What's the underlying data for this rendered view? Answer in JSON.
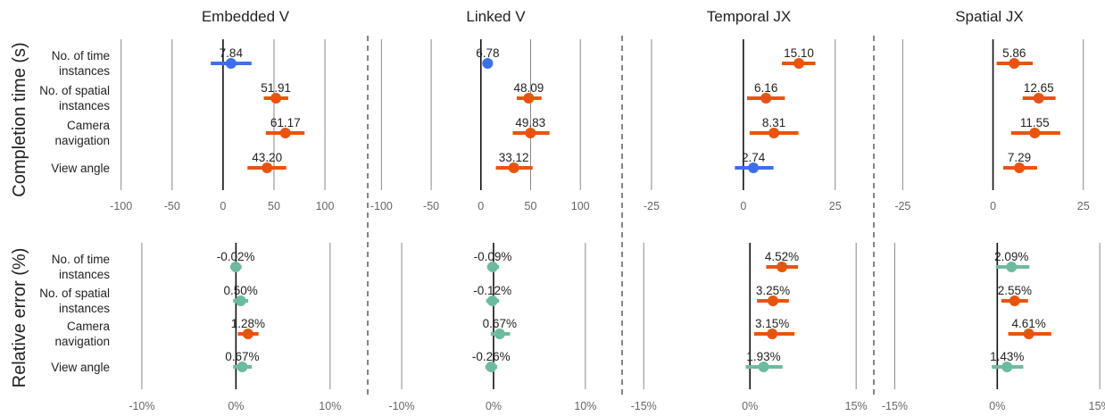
{
  "colors": {
    "significant": "#e8540e",
    "completion_other": "#3d6fe8",
    "error_other": "#6dbb9f",
    "grid": "#888888",
    "zero": "#111111",
    "text": "#222222",
    "tick": "#666666"
  },
  "row_titles": [
    "Completion time (s)",
    "Relative error (%)"
  ],
  "panel_titles": [
    "Embedded V",
    "Linked V",
    "Temporal JX",
    "Spatial JX"
  ],
  "categories": [
    [
      "No. of time",
      "instances"
    ],
    [
      "No. of spatial",
      "instances"
    ],
    [
      "Camera",
      "navigation"
    ],
    [
      "View angle"
    ]
  ],
  "chart_data": [
    {
      "type": "scatter",
      "row": 0,
      "col": 0,
      "title": "Embedded V",
      "xlim": [
        -112,
        142
      ],
      "ticks": [
        -100,
        -50,
        0,
        50,
        100
      ],
      "tick_labels": [
        "-100",
        "-50",
        "0",
        "50",
        "100"
      ],
      "grid": true,
      "points": [
        {
          "value": 7.84,
          "low": -12,
          "high": 28,
          "label": "7.84",
          "color": "completion_other"
        },
        {
          "value": 51.91,
          "low": 40,
          "high": 64,
          "label": "51.91",
          "color": "significant"
        },
        {
          "value": 61.17,
          "low": 42,
          "high": 80,
          "label": "61.17",
          "color": "significant"
        },
        {
          "value": 43.2,
          "low": 24,
          "high": 62,
          "label": "43.20",
          "color": "significant"
        }
      ]
    },
    {
      "type": "scatter",
      "row": 0,
      "col": 1,
      "title": "Linked V",
      "xlim": [
        -112,
        142
      ],
      "ticks": [
        -100,
        -50,
        0,
        50,
        100
      ],
      "tick_labels": [
        "-100",
        "-50",
        "0",
        "50",
        "100"
      ],
      "grid": true,
      "points": [
        {
          "value": 6.78,
          "low": 6.78,
          "high": 6.78,
          "label": "6.78",
          "color": "completion_other"
        },
        {
          "value": 48.09,
          "low": 36,
          "high": 61,
          "label": "48.09",
          "color": "significant"
        },
        {
          "value": 49.83,
          "low": 32,
          "high": 69,
          "label": "49.83",
          "color": "significant"
        },
        {
          "value": 33.12,
          "low": 15,
          "high": 52,
          "label": "33.12",
          "color": "significant"
        }
      ]
    },
    {
      "type": "scatter",
      "row": 0,
      "col": 2,
      "title": "Temporal JX",
      "xlim": [
        -32.5,
        35.5
      ],
      "ticks": [
        -25,
        0,
        25
      ],
      "tick_labels": [
        "-25",
        "0",
        "25"
      ],
      "grid": true,
      "points": [
        {
          "value": 15.1,
          "low": 10.5,
          "high": 19.6,
          "label": "15.10",
          "color": "significant"
        },
        {
          "value": 6.16,
          "low": 1.0,
          "high": 11.3,
          "label": "6.16",
          "color": "significant"
        },
        {
          "value": 8.31,
          "low": 1.7,
          "high": 15.0,
          "label": "8.31",
          "color": "significant"
        },
        {
          "value": 2.74,
          "low": -2.3,
          "high": 8.2,
          "label": "2.74",
          "color": "completion_other"
        }
      ]
    },
    {
      "type": "scatter",
      "row": 0,
      "col": 3,
      "title": "Spatial JX",
      "xlim": [
        -32.5,
        30.5
      ],
      "ticks": [
        -25,
        0,
        25
      ],
      "tick_labels": [
        "-25",
        "0",
        "25"
      ],
      "grid": true,
      "points": [
        {
          "value": 5.86,
          "low": 1.0,
          "high": 11.0,
          "label": "5.86",
          "color": "significant"
        },
        {
          "value": 12.65,
          "low": 8.2,
          "high": 17.3,
          "label": "12.65",
          "color": "significant"
        },
        {
          "value": 11.55,
          "low": 5.0,
          "high": 18.6,
          "label": "11.55",
          "color": "significant"
        },
        {
          "value": 7.29,
          "low": 2.8,
          "high": 12.2,
          "label": "7.29",
          "color": "significant"
        }
      ]
    },
    {
      "type": "scatter",
      "row": 1,
      "col": 0,
      "title": "",
      "xlim": [
        -13.5,
        14.0
      ],
      "ticks": [
        -10,
        0,
        10
      ],
      "tick_labels": [
        "-10%",
        "0%",
        "10%"
      ],
      "grid": true,
      "points": [
        {
          "value": -0.02,
          "low": -0.6,
          "high": 0.6,
          "label": "-0.02%",
          "color": "error_other"
        },
        {
          "value": 0.5,
          "low": -0.3,
          "high": 1.3,
          "label": "0.50%",
          "color": "error_other"
        },
        {
          "value": 1.28,
          "low": 0.2,
          "high": 2.4,
          "label": "1.28%",
          "color": "significant"
        },
        {
          "value": 0.67,
          "low": -0.3,
          "high": 1.7,
          "label": "0.67%",
          "color": "error_other"
        }
      ]
    },
    {
      "type": "scatter",
      "row": 1,
      "col": 1,
      "title": "",
      "xlim": [
        -13.5,
        14.0
      ],
      "ticks": [
        -10,
        0,
        10
      ],
      "tick_labels": [
        "-10%",
        "0%",
        "10%"
      ],
      "grid": true,
      "points": [
        {
          "value": -0.09,
          "low": -0.7,
          "high": 0.6,
          "label": "-0.09%",
          "color": "error_other"
        },
        {
          "value": -0.12,
          "low": -0.8,
          "high": 0.6,
          "label": "-0.12%",
          "color": "error_other"
        },
        {
          "value": 0.67,
          "low": -0.3,
          "high": 1.8,
          "label": "0.67%",
          "color": "error_other"
        },
        {
          "value": -0.26,
          "low": -0.9,
          "high": 0.4,
          "label": "-0.26%",
          "color": "error_other"
        }
      ]
    },
    {
      "type": "scatter",
      "row": 1,
      "col": 2,
      "title": "",
      "xlim": [
        -17.8,
        17.5
      ],
      "ticks": [
        -15,
        0,
        15
      ],
      "tick_labels": [
        "-15%",
        "0%",
        "15%"
      ],
      "grid": true,
      "points": [
        {
          "value": 4.52,
          "low": 2.3,
          "high": 6.8,
          "label": "4.52%",
          "color": "significant"
        },
        {
          "value": 3.25,
          "low": 1.0,
          "high": 5.5,
          "label": "3.25%",
          "color": "significant"
        },
        {
          "value": 3.15,
          "low": 0.6,
          "high": 6.3,
          "label": "3.15%",
          "color": "significant"
        },
        {
          "value": 1.93,
          "low": -0.6,
          "high": 4.6,
          "label": "1.93%",
          "color": "error_other"
        }
      ]
    },
    {
      "type": "scatter",
      "row": 1,
      "col": 3,
      "title": "",
      "xlim": [
        -17.8,
        15.5
      ],
      "ticks": [
        -15,
        0,
        15
      ],
      "tick_labels": [
        "-15%",
        "0%",
        "15%"
      ],
      "grid": true,
      "points": [
        {
          "value": 2.09,
          "low": -0.2,
          "high": 4.7,
          "label": "2.09%",
          "color": "error_other"
        },
        {
          "value": 2.55,
          "low": 0.6,
          "high": 4.5,
          "label": "2.55%",
          "color": "significant"
        },
        {
          "value": 4.61,
          "low": 1.6,
          "high": 7.9,
          "label": "4.61%",
          "color": "significant"
        },
        {
          "value": 1.43,
          "low": -0.8,
          "high": 3.8,
          "label": "1.43%",
          "color": "error_other"
        }
      ]
    }
  ]
}
